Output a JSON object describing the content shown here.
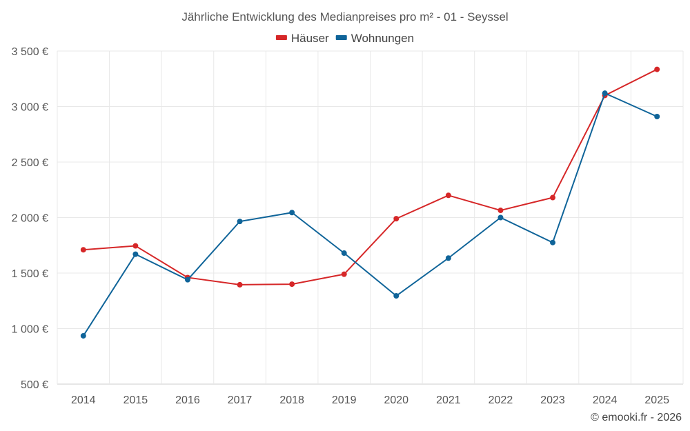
{
  "chart_data": {
    "type": "line",
    "title": "Jährliche Entwicklung des Medianpreises pro m² - 01 - Seyssel",
    "xlabel": "",
    "ylabel": "",
    "x": [
      "2014",
      "2015",
      "2016",
      "2017",
      "2018",
      "2019",
      "2020",
      "2021",
      "2022",
      "2023",
      "2024",
      "2025"
    ],
    "ylim": [
      500,
      3500
    ],
    "yticks": [
      500,
      1000,
      1500,
      2000,
      2500,
      3000,
      3500
    ],
    "ytick_labels": [
      "500 €",
      "1 000 €",
      "1 500 €",
      "2 000 €",
      "2 500 €",
      "3 000 €",
      "3 500 €"
    ],
    "grid": true,
    "legend_position": "top-center",
    "series": [
      {
        "name": "Häuser",
        "color": "#d62728",
        "values": [
          1710,
          1745,
          1460,
          1395,
          1400,
          1490,
          1990,
          2200,
          2065,
          2180,
          3100,
          3335
        ]
      },
      {
        "name": "Wohnungen",
        "color": "#0f6499",
        "values": [
          935,
          1670,
          1440,
          1965,
          2045,
          1680,
          1295,
          1635,
          2000,
          1775,
          3120,
          2910
        ]
      }
    ]
  },
  "credit": "© emooki.fr - 2026"
}
